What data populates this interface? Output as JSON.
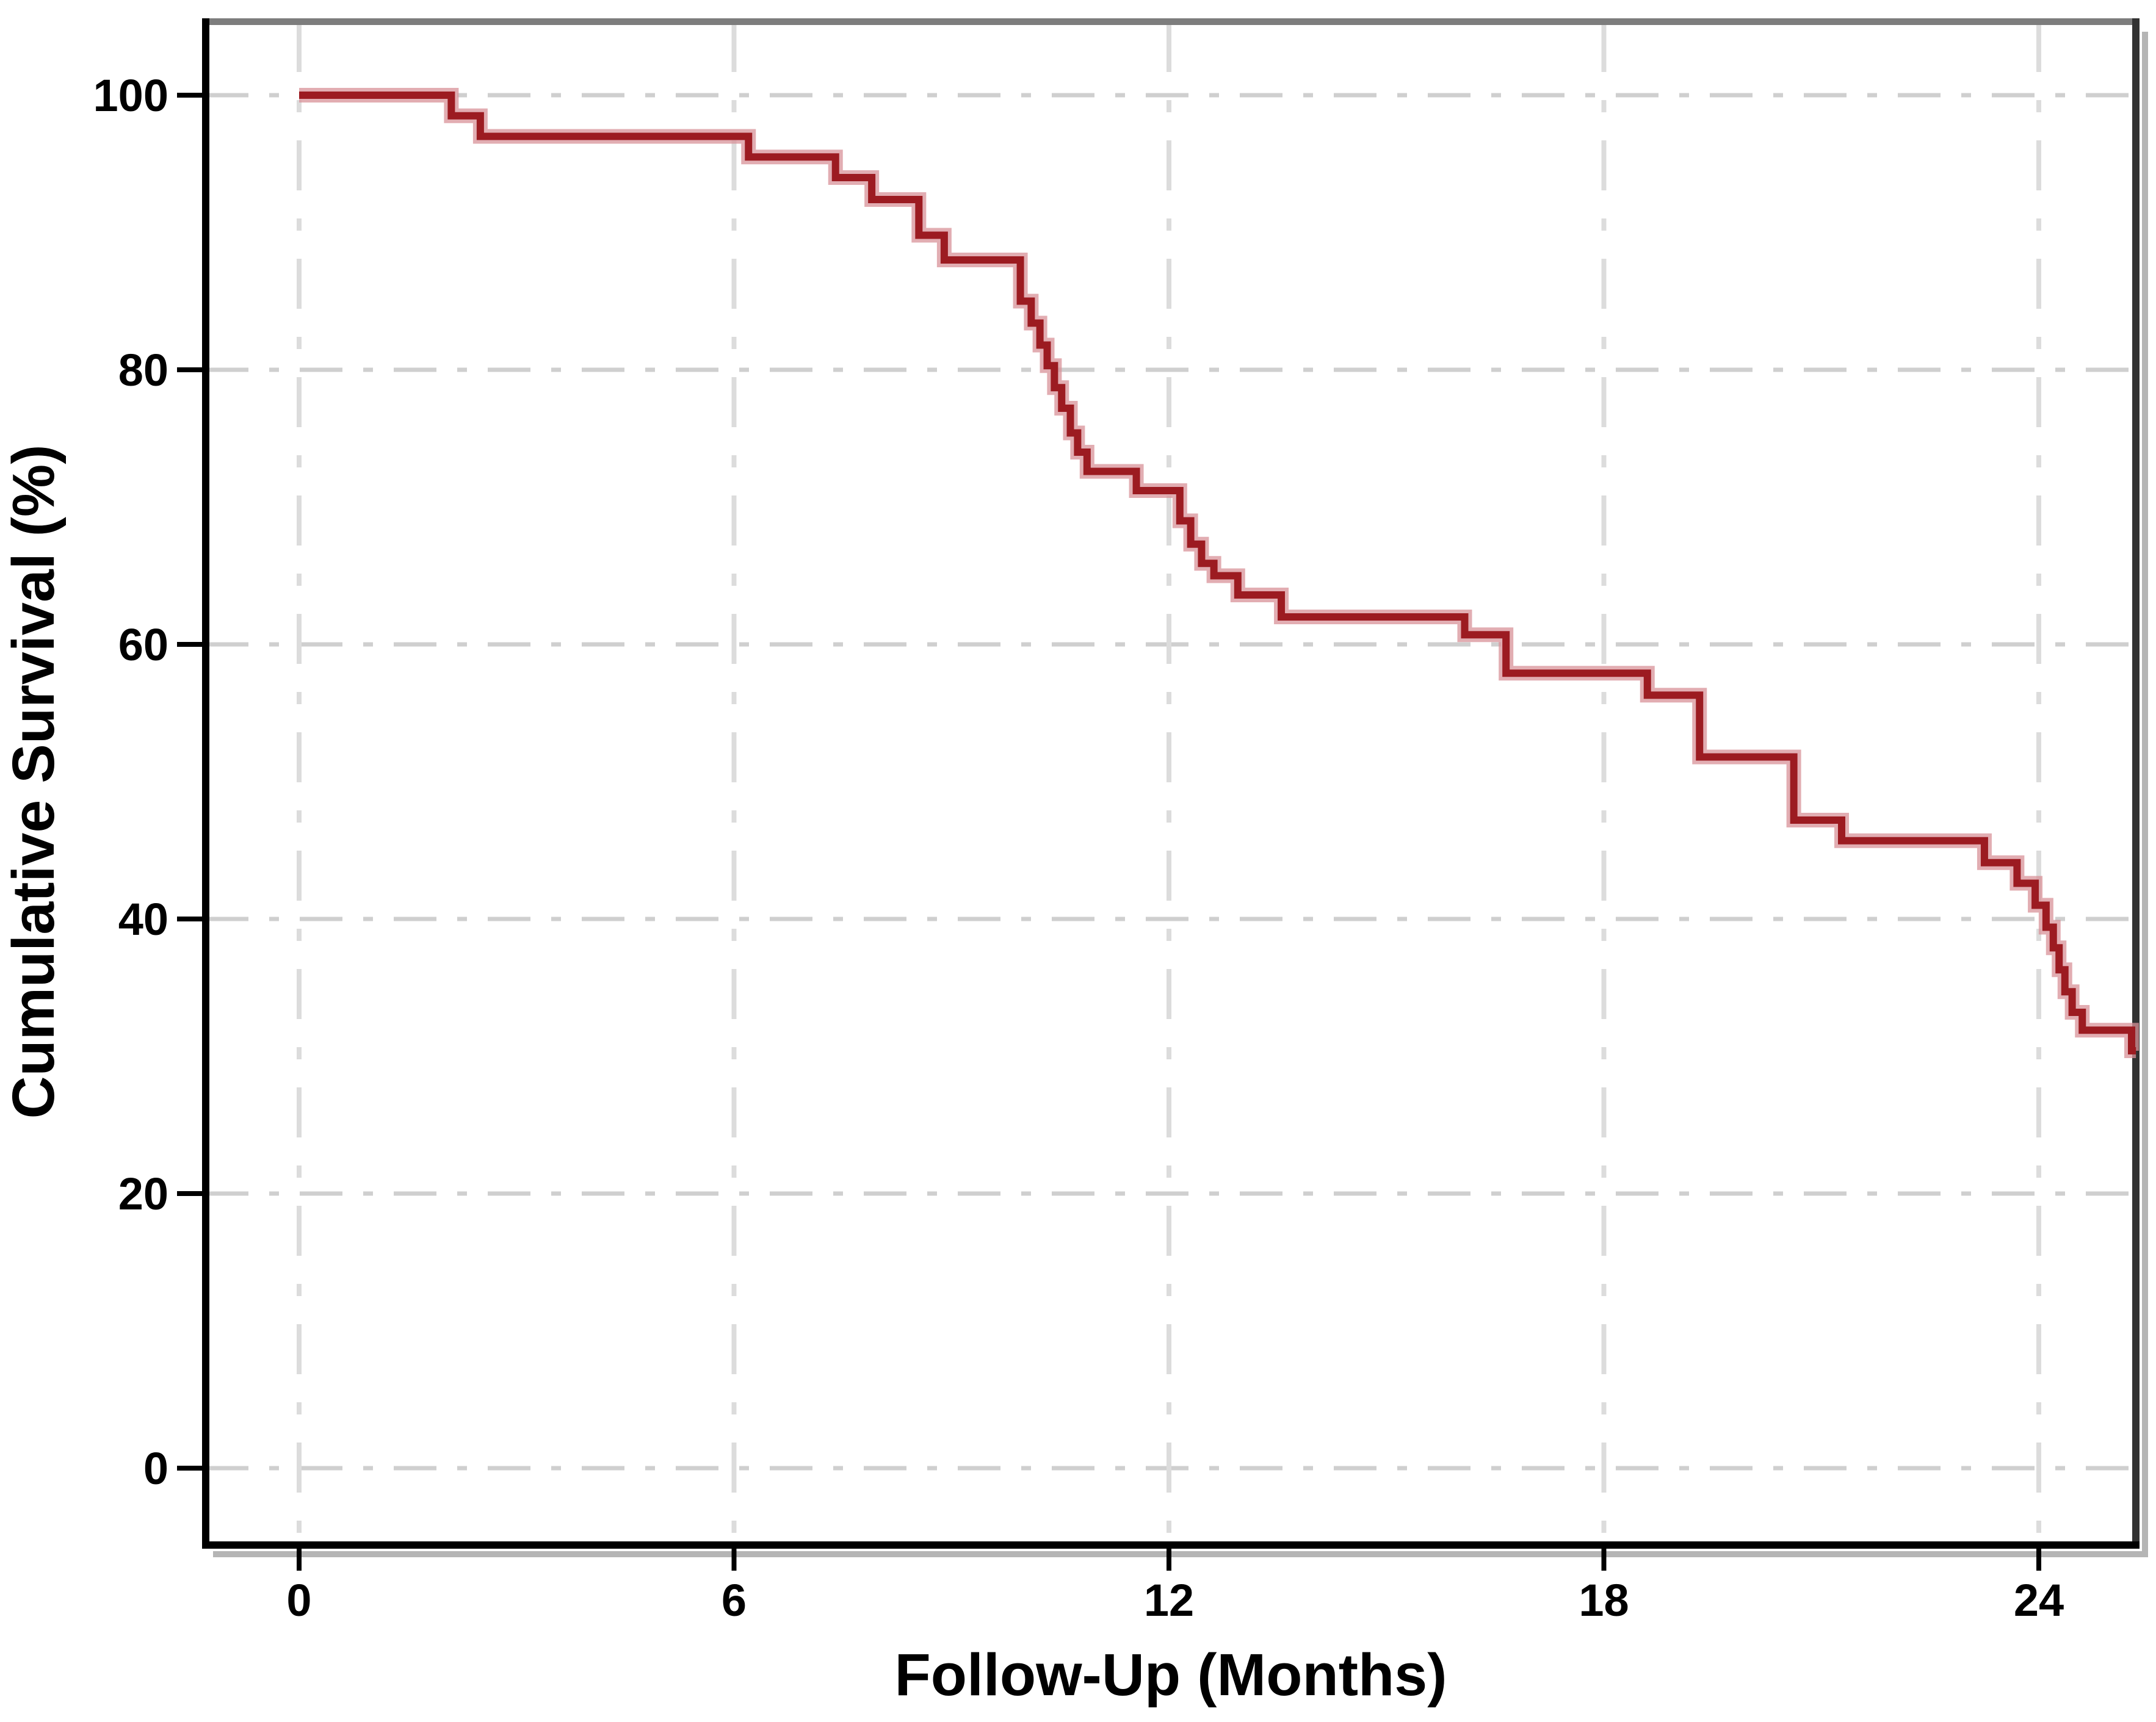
{
  "chart_data": {
    "type": "line",
    "subtype": "kaplan-meier-step-curve",
    "title": "",
    "xlabel": "Follow-Up (Months)",
    "ylabel": "Cumulative Survival (%)",
    "xlim": [
      -1.3,
      25.4
    ],
    "ylim": [
      -5.6,
      105.3
    ],
    "x_ticks": [
      0,
      6,
      12,
      18,
      24
    ],
    "y_ticks": [
      0,
      20,
      40,
      60,
      80,
      100
    ],
    "grid": true,
    "grid_style": "dash-dot",
    "legend_position": "none",
    "series": [
      {
        "name": "Cumulative Survival",
        "color": "#9c1b21",
        "halo_color": "#d89298",
        "points": [
          [
            0,
            100
          ],
          [
            2.1,
            98.5
          ],
          [
            2.5,
            97
          ],
          [
            6.2,
            95.5
          ],
          [
            7.4,
            94
          ],
          [
            7.9,
            92.4
          ],
          [
            8.55,
            89.8
          ],
          [
            8.9,
            88
          ],
          [
            9.95,
            85
          ],
          [
            10.1,
            83.4
          ],
          [
            10.22,
            81.8
          ],
          [
            10.32,
            80.3
          ],
          [
            10.42,
            78.7
          ],
          [
            10.52,
            77.2
          ],
          [
            10.64,
            75.4
          ],
          [
            10.74,
            74
          ],
          [
            10.87,
            72.6
          ],
          [
            11.55,
            71.2
          ],
          [
            12.15,
            69
          ],
          [
            12.3,
            67.3
          ],
          [
            12.45,
            65.9
          ],
          [
            12.62,
            65
          ],
          [
            12.95,
            63.6
          ],
          [
            13.55,
            62
          ],
          [
            16.08,
            60.7
          ],
          [
            16.65,
            57.9
          ],
          [
            18.6,
            56.3
          ],
          [
            19.32,
            51.8
          ],
          [
            20.62,
            47.2
          ],
          [
            21.28,
            45.7
          ],
          [
            23.25,
            44.1
          ],
          [
            23.7,
            42.6
          ],
          [
            23.95,
            41
          ],
          [
            24.1,
            39.4
          ],
          [
            24.2,
            37.9
          ],
          [
            24.28,
            36.3
          ],
          [
            24.36,
            34.7
          ],
          [
            24.46,
            33.2
          ],
          [
            24.6,
            31.9
          ],
          [
            25.28,
            30.4
          ]
        ],
        "end_time": 25.34
      }
    ],
    "colors": {
      "curve": "#9c1b21",
      "curve_halo": "#d89298",
      "grid_horizontal": "#cfcfcf",
      "grid_vertical": "#dcdcdc",
      "axis": "#000000",
      "frame_top": "#7d7d7d",
      "frame_right": "#323232",
      "frame_shadow": "#b5b5b5",
      "background": "#ffffff"
    }
  }
}
